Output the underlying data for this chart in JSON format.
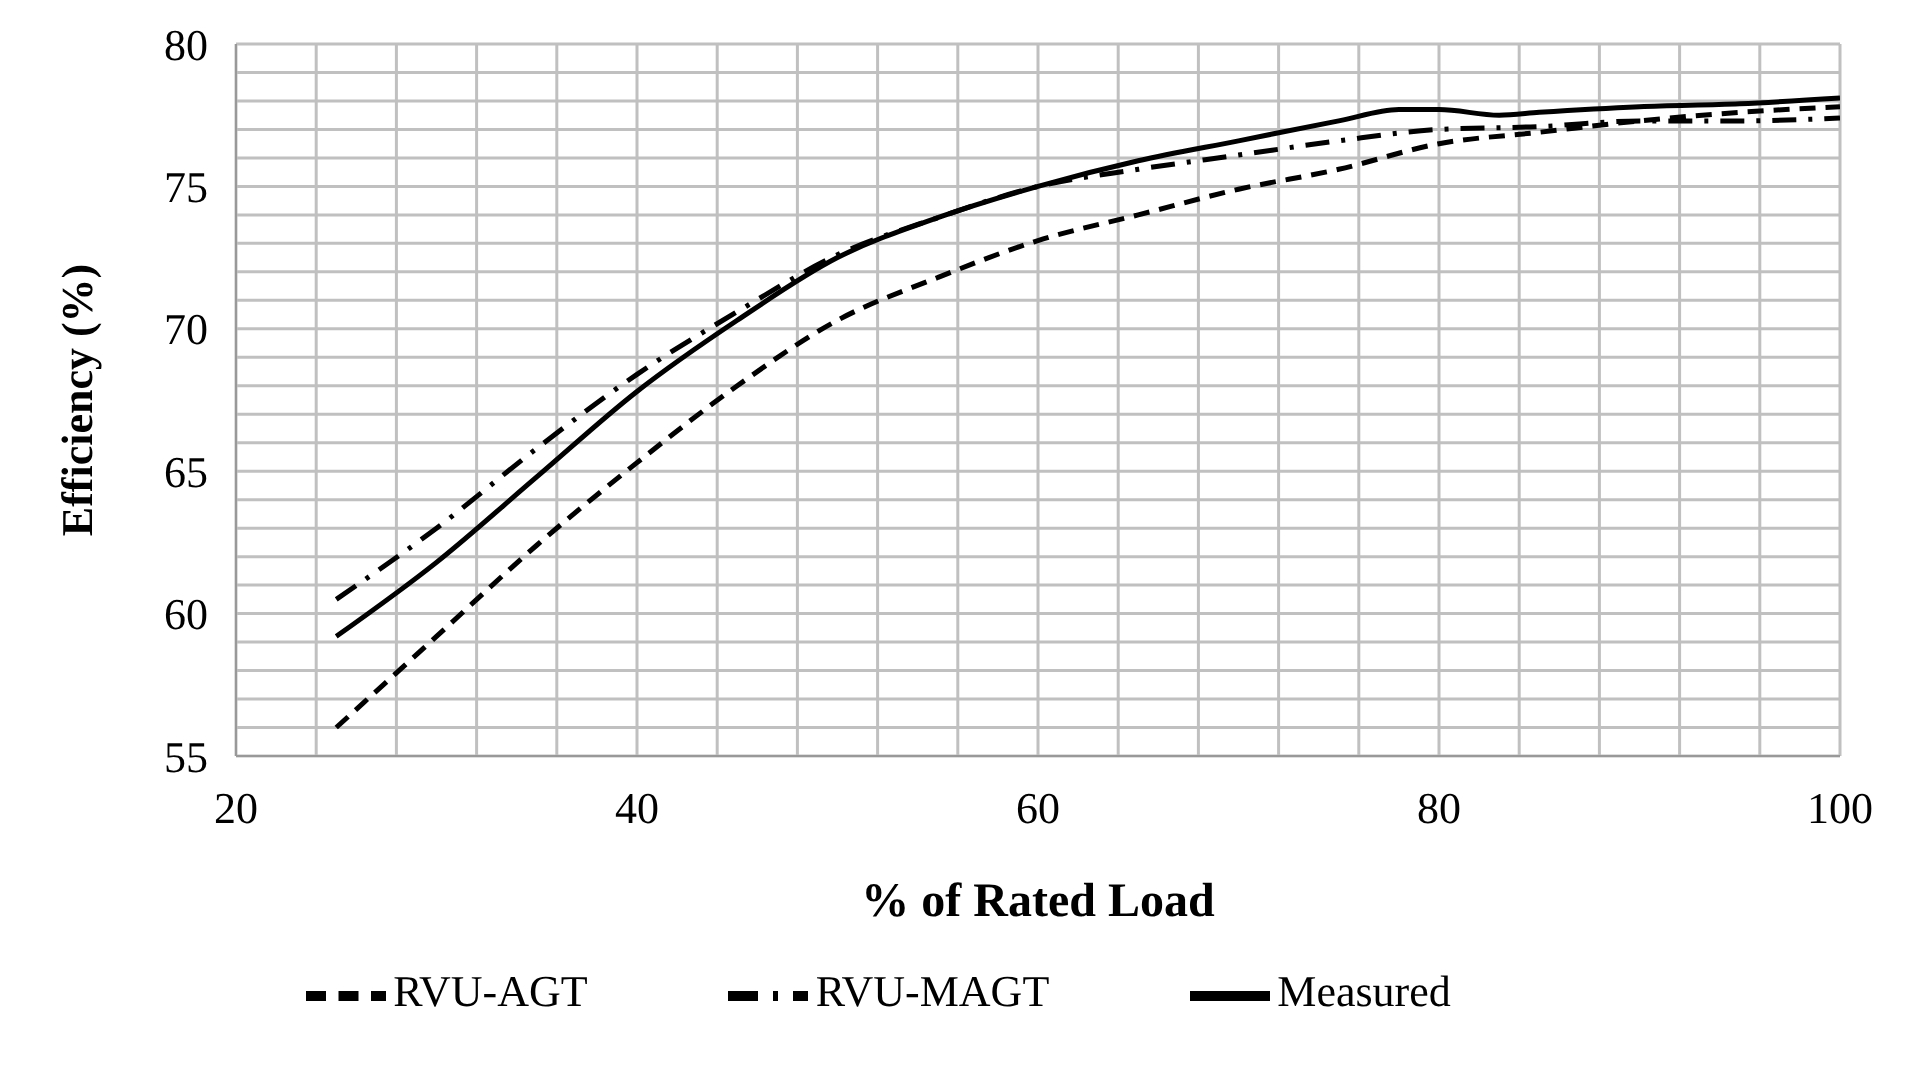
{
  "chart_data": {
    "type": "line",
    "xlabel": "% of Rated Load",
    "ylabel": "Efficiency (%)",
    "xlim": [
      20,
      100
    ],
    "xticks": [
      20,
      {
        "value": 24,
        "label": null
      },
      {
        "value": 28,
        "label": null
      },
      {
        "value": 32,
        "label": null
      },
      {
        "value": 36,
        "label": null
      },
      40,
      {
        "value": 44,
        "label": null
      },
      {
        "value": 48,
        "label": null
      },
      {
        "value": 52,
        "label": null
      },
      {
        "value": 56,
        "label": null
      },
      60,
      {
        "value": 64,
        "label": null
      },
      {
        "value": 68,
        "label": null
      },
      {
        "value": 72,
        "label": null
      },
      {
        "value": 76,
        "label": null
      },
      80,
      {
        "value": 84,
        "label": null
      },
      {
        "value": 88,
        "label": null
      },
      {
        "value": 92,
        "label": null
      },
      {
        "value": 96,
        "label": null
      },
      100
    ],
    "ylim": [
      55,
      80
    ],
    "yticks": [
      55,
      {
        "value": 56,
        "label": null
      },
      {
        "value": 57,
        "label": null
      },
      {
        "value": 58,
        "label": null
      },
      {
        "value": 59,
        "label": null
      },
      60,
      {
        "value": 61,
        "label": null
      },
      {
        "value": 62,
        "label": null
      },
      {
        "value": 63,
        "label": null
      },
      {
        "value": 64,
        "label": null
      },
      65,
      {
        "value": 66,
        "label": null
      },
      {
        "value": 67,
        "label": null
      },
      {
        "value": 68,
        "label": null
      },
      {
        "value": 69,
        "label": null
      },
      70,
      {
        "value": 71,
        "label": null
      },
      {
        "value": 72,
        "label": null
      },
      {
        "value": 73,
        "label": null
      },
      {
        "value": 74,
        "label": null
      },
      75,
      {
        "value": 76,
        "label": null
      },
      {
        "value": 77,
        "label": null
      },
      {
        "value": 78,
        "label": null
      },
      {
        "value": 79,
        "label": null
      },
      80
    ],
    "grid": true,
    "legend": "bottom",
    "marker": "none",
    "x": [
      25,
      30,
      35,
      40,
      45,
      50,
      55,
      60,
      65,
      70,
      75,
      80,
      85,
      90,
      95,
      100
    ],
    "series": [
      {
        "name": "RVU-AGT",
        "color": "#000000",
        "line_style": "dashed",
        "values": [
          56.0,
          59.2,
          62.4,
          65.3,
          68.0,
          70.3,
          71.8,
          73.1,
          74.0,
          74.9,
          75.6,
          76.5,
          76.9,
          77.3,
          77.6,
          77.8
        ]
      },
      {
        "name": "RVU-MAGT",
        "color": "#000000",
        "line_style": "dashdot",
        "values": [
          60.5,
          63.0,
          65.8,
          68.4,
          70.6,
          72.6,
          73.9,
          75.0,
          75.6,
          76.1,
          76.6,
          77.0,
          77.1,
          77.3,
          77.3,
          77.4
        ]
      },
      {
        "name": "Measured",
        "color": "#000000",
        "line_style": "solid",
        "x": [
          25,
          30,
          35,
          40,
          45,
          50,
          55,
          60,
          65,
          70,
          75,
          78,
          80,
          83,
          85,
          90,
          95,
          100
        ],
        "values": [
          59.2,
          61.8,
          64.8,
          67.8,
          70.3,
          72.5,
          73.9,
          75.0,
          75.9,
          76.6,
          77.3,
          77.7,
          77.7,
          77.5,
          77.6,
          77.8,
          77.9,
          78.1
        ]
      }
    ]
  }
}
